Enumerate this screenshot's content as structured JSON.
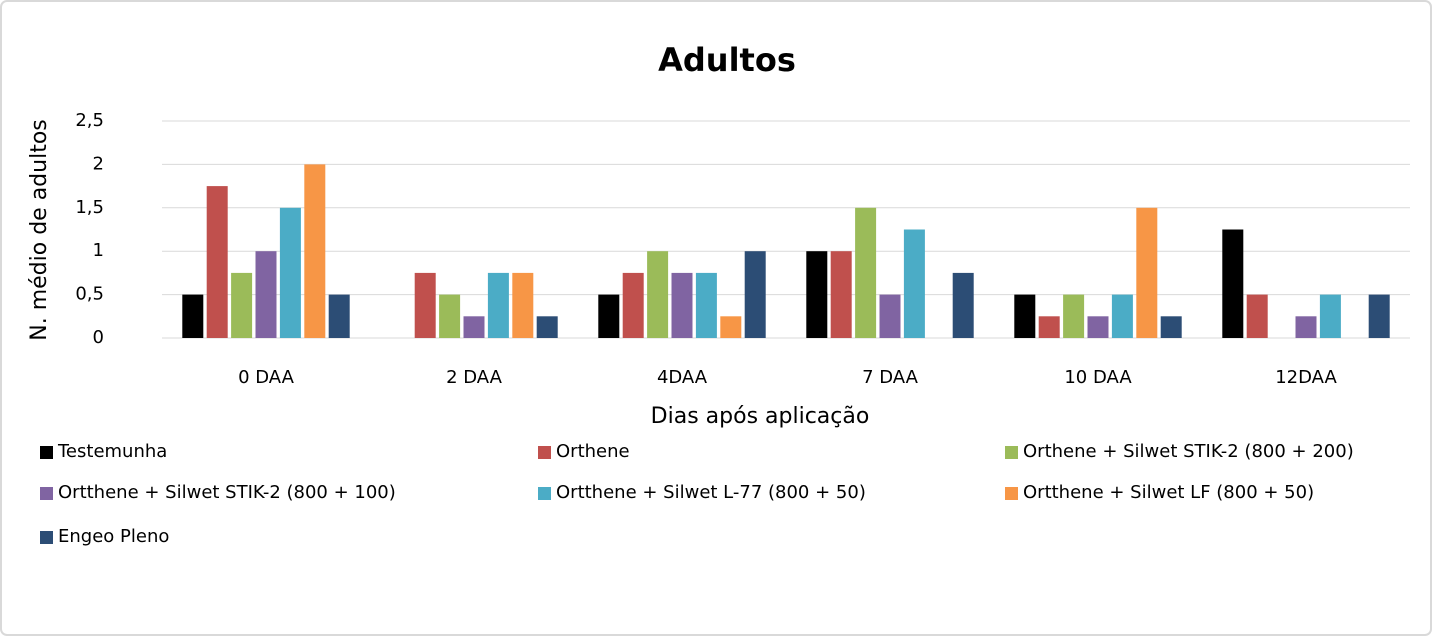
{
  "chart_data": {
    "type": "bar",
    "title": "Adultos",
    "x_label": "Dias após aplicação",
    "y_label": "N. médio de adultos",
    "categories": [
      "0 DAA",
      "2 DAA",
      "4DAA",
      "7 DAA",
      "10 DAA",
      "12DAA"
    ],
    "series": [
      {
        "name": "Testemunha",
        "color": "#000000",
        "values": [
          0.5,
          0,
          0.5,
          1,
          0.5,
          1.25
        ]
      },
      {
        "name": "Orthene",
        "color": "#c0504d",
        "values": [
          1.75,
          0.75,
          0.75,
          1,
          0.25,
          0.5
        ]
      },
      {
        "name": "Orthene + Silwet STIK-2 (800 + 200)",
        "color": "#9bbb59",
        "values": [
          0.75,
          0.5,
          1,
          1.5,
          0.5,
          0
        ]
      },
      {
        "name": "Ortthene + Silwet STIK-2 (800 + 100)",
        "color": "#8064a2",
        "values": [
          1,
          0.25,
          0.75,
          0.5,
          0.25,
          0.25
        ]
      },
      {
        "name": "Ortthene + Silwet L-77 (800 + 50)",
        "color": "#4bacc6",
        "values": [
          1.5,
          0.75,
          0.75,
          1.25,
          0.5,
          0.5
        ]
      },
      {
        "name": "Ortthene + Silwet LF (800 + 50)",
        "color": "#f79646",
        "values": [
          2,
          0.75,
          0.25,
          0,
          1.5,
          0
        ]
      },
      {
        "name": "Engeo Pleno",
        "color": "#2c4d75",
        "values": [
          0.5,
          0.25,
          1,
          0.75,
          0.25,
          0.5
        ]
      }
    ],
    "ylim": [
      0,
      2.5
    ],
    "yticks": [
      0,
      {
        "value": 0.5,
        "label": "0,5"
      },
      1,
      {
        "value": 1.5,
        "label": "1,5"
      },
      2,
      {
        "value": 2.5,
        "label": "2,5"
      }
    ],
    "grid": true
  }
}
